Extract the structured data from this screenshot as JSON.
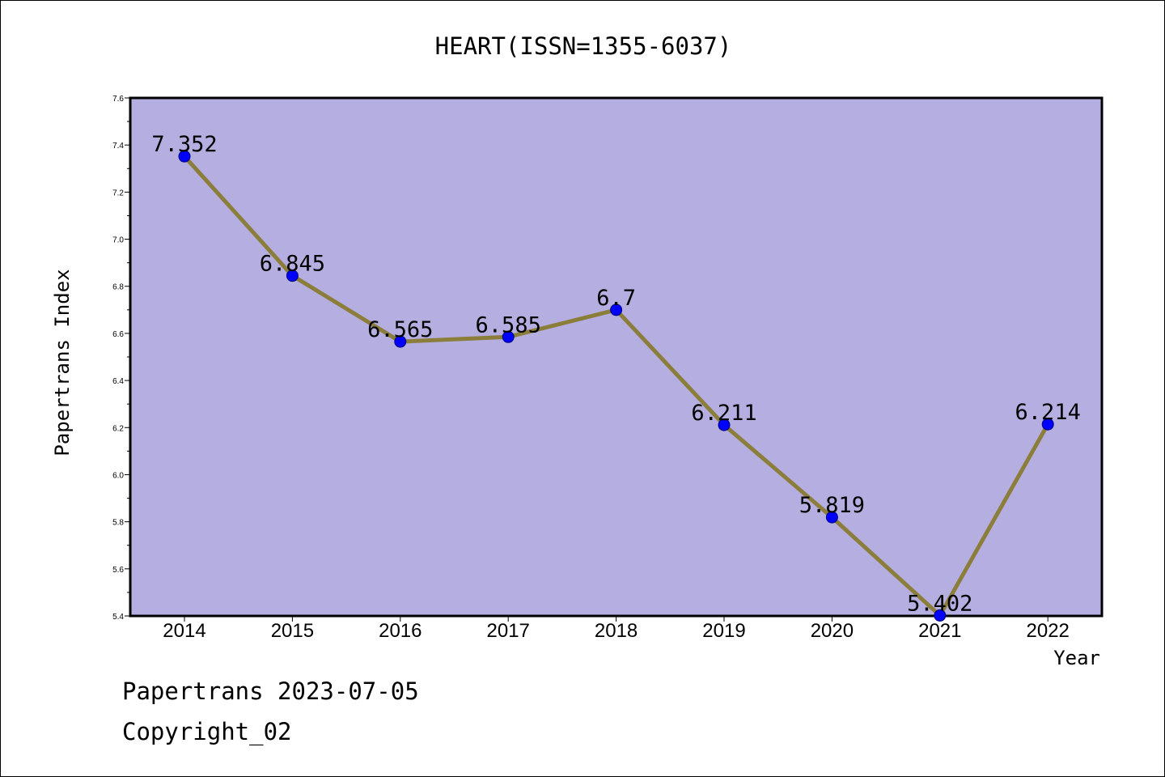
{
  "chart_data": {
    "type": "line",
    "title": "HEART(ISSN=1355-6037)",
    "xlabel": "Year",
    "ylabel": "Papertrans Index",
    "categories": [
      "2014",
      "2015",
      "2016",
      "2017",
      "2018",
      "2019",
      "2020",
      "2021",
      "2022"
    ],
    "series": [
      {
        "values": [
          7.352,
          6.845,
          6.565,
          6.585,
          6.7,
          6.211,
          5.819,
          5.402,
          6.214
        ],
        "labels": [
          "7.352",
          "6.845",
          "6.565",
          "6.585",
          "6.7",
          "6.211",
          "5.819",
          "5.402",
          "6.214"
        ]
      }
    ],
    "ylim": [
      5.4,
      7.6
    ],
    "yticks": [
      "5.4",
      "5.6",
      "5.8",
      "6.0",
      "6.2",
      "6.4",
      "6.6",
      "6.8",
      "7.0",
      "7.2",
      "7.4",
      "7.6"
    ],
    "grid": false,
    "colors": {
      "plot_background": "#b5aee1",
      "line": "#8b7d3a",
      "marker": "#0000ff"
    }
  },
  "footer": {
    "line1": "Papertrans 2023-07-05",
    "line2": "Copyright_02"
  }
}
